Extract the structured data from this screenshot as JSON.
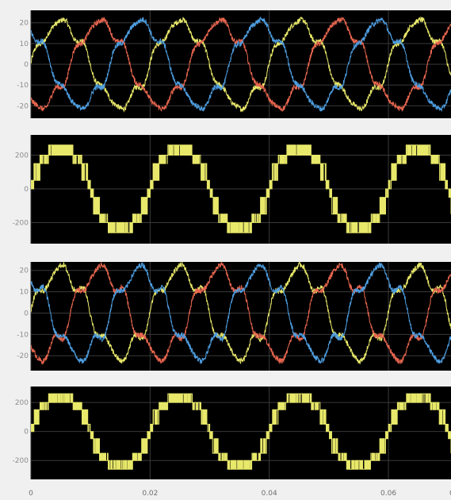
{
  "chart_data": [
    {
      "type": "line",
      "name": "three-phase-current-1",
      "ylim": [
        -26,
        26
      ],
      "yticks": [
        -20,
        -10,
        0,
        10,
        20
      ],
      "xlim": [
        0,
        0.0705
      ],
      "series": [
        {
          "color": "#e8e86a",
          "amplitude": 20,
          "frequency_hz": 50,
          "phase_deg": 0
        },
        {
          "color": "#e8664f",
          "amplitude": 20,
          "frequency_hz": 50,
          "phase_deg": -120
        },
        {
          "color": "#4d9de0",
          "amplitude": 20,
          "frequency_hz": 50,
          "phase_deg": 120
        }
      ]
    },
    {
      "type": "line",
      "name": "line-voltage-1",
      "ylim": [
        -325,
        320
      ],
      "yticks": [
        -200,
        0,
        200
      ],
      "xlim": [
        0,
        0.0705
      ],
      "series": [
        {
          "color": "#e8e86a",
          "levels": [
            0,
            50,
            150,
            200,
            260
          ],
          "frequency_hz": 50
        }
      ]
    },
    {
      "type": "line",
      "name": "three-phase-current-2",
      "ylim": [
        -27,
        24
      ],
      "yticks": [
        -20,
        -10,
        0,
        10,
        20
      ],
      "xlim": [
        0,
        0.0705
      ],
      "series": [
        {
          "color": "#e8e86a",
          "amplitude": 20,
          "frequency_hz": 50,
          "phase_deg": 0
        },
        {
          "color": "#e8664f",
          "amplitude": 20,
          "frequency_hz": 50,
          "phase_deg": -120
        },
        {
          "color": "#4d9de0",
          "amplitude": 20,
          "frequency_hz": 50,
          "phase_deg": 120
        }
      ]
    },
    {
      "type": "line",
      "name": "line-voltage-2",
      "ylim": [
        -330,
        310
      ],
      "yticks": [
        -200,
        0,
        200
      ],
      "xlim": [
        0,
        0.0705
      ],
      "series": [
        {
          "color": "#e8e86a",
          "levels": [
            0,
            50,
            150,
            200,
            260
          ],
          "frequency_hz": 50
        }
      ]
    }
  ],
  "x_axis": {
    "ticks": [
      0,
      0.02,
      0.04,
      0.06
    ],
    "tick_labels": [
      "0",
      "0.02",
      "0.04",
      "0.06"
    ],
    "partial_label": "0"
  },
  "colors": {
    "plot_background": "#000000",
    "grid": "#3a3a3a",
    "window_background": "#f0f0f0"
  }
}
